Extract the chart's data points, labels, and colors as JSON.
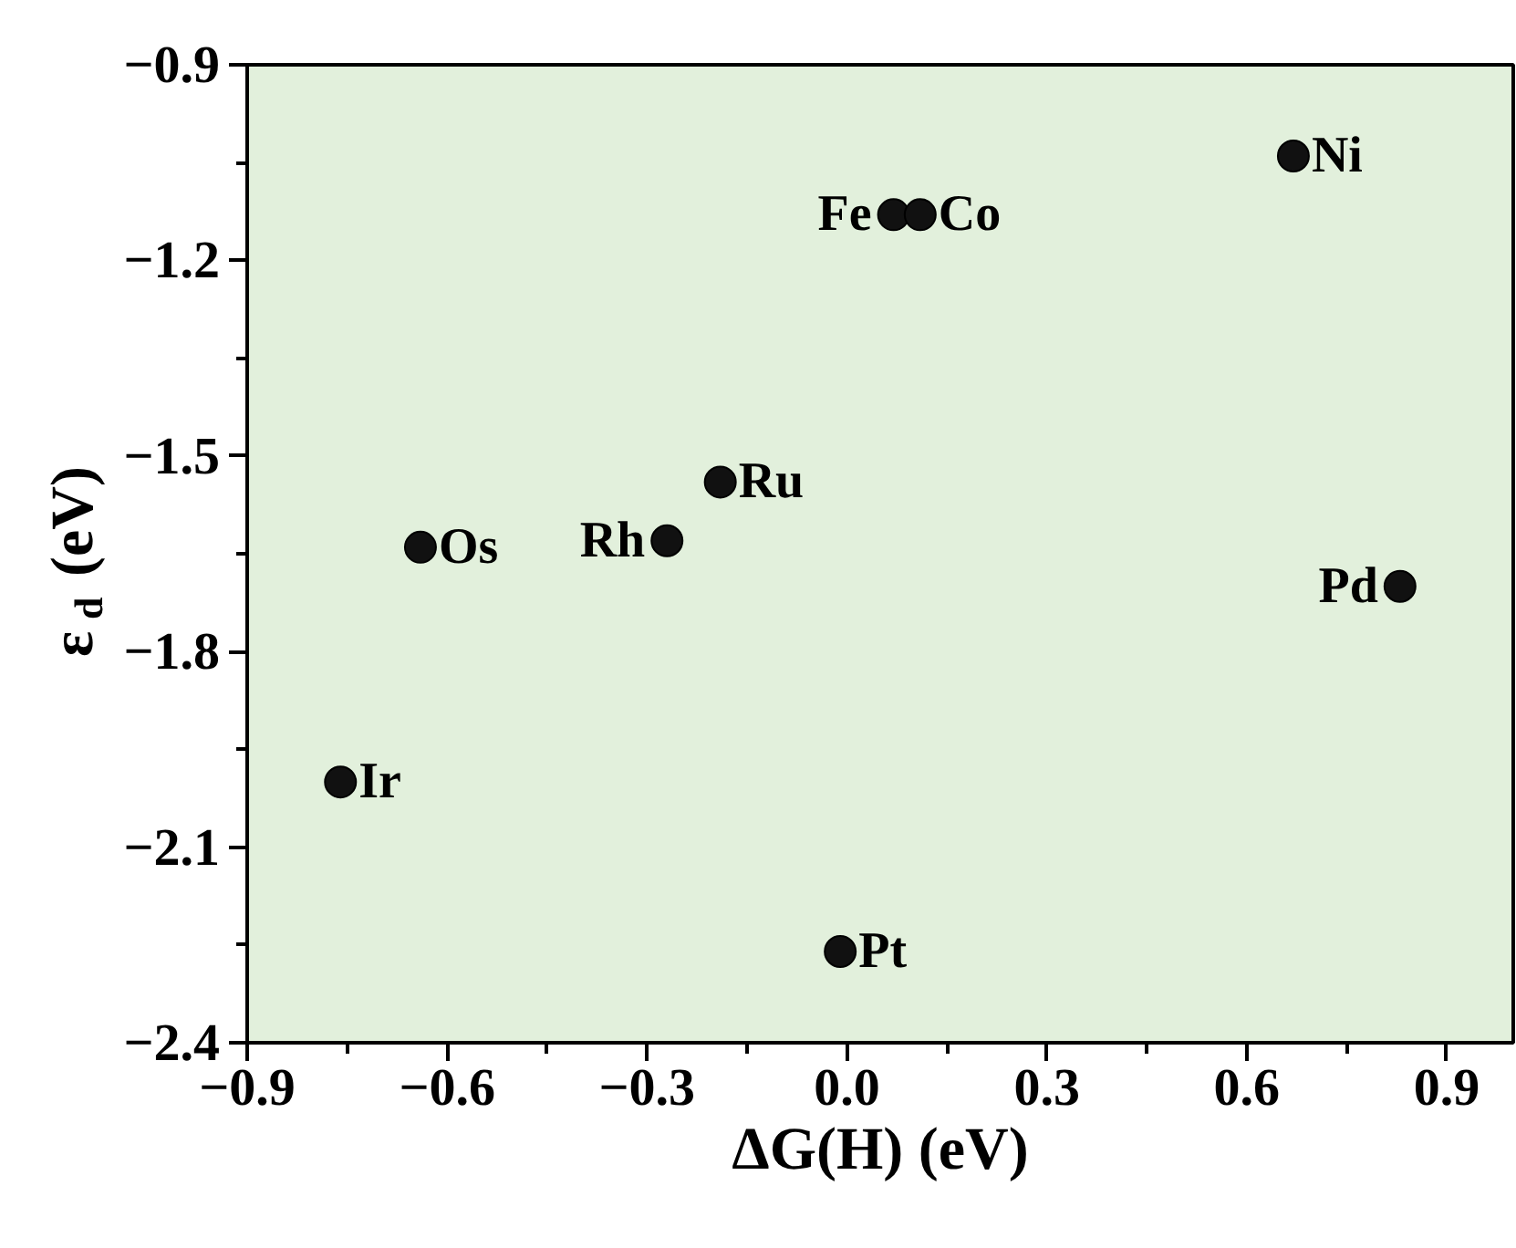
{
  "chart_data": {
    "type": "scatter",
    "xlabel": "ΔG(H) (eV)",
    "ylabel": "ε$_{d}$ (eV)",
    "xlim": [
      -0.9,
      1.0
    ],
    "ylim": [
      -2.4,
      -0.9
    ],
    "xticks": [
      {
        "value": -0.9,
        "label": "−0.9"
      },
      {
        "value": -0.6,
        "label": "−0.6"
      },
      {
        "value": -0.3,
        "label": "−0.3"
      },
      {
        "value": 0.0,
        "label": "0.0"
      },
      {
        "value": 0.3,
        "label": "0.3"
      },
      {
        "value": 0.6,
        "label": "0.6"
      },
      {
        "value": 0.9,
        "label": "0.9"
      }
    ],
    "yticks": [
      {
        "value": -0.9,
        "label": "−0.9"
      },
      {
        "value": -1.2,
        "label": "−1.2"
      },
      {
        "value": -1.5,
        "label": "−1.5"
      },
      {
        "value": -1.8,
        "label": "−1.8"
      },
      {
        "value": -2.1,
        "label": "−2.1"
      },
      {
        "value": -2.4,
        "label": "−2.4"
      }
    ],
    "x": [
      0.67,
      0.07,
      0.11,
      -0.19,
      -0.27,
      -0.64,
      0.83,
      -0.76,
      -0.01
    ],
    "series": [
      {
        "color": "#111111",
        "values": [
          -1.04,
          -1.13,
          -1.13,
          -1.54,
          -1.63,
          -1.64,
          -1.7,
          -2.0,
          -2.26
        ]
      }
    ],
    "marker": "circle",
    "grid": false,
    "annotations": [
      {
        "text": "Ni",
        "x": 0.67,
        "y": -1.04
      },
      {
        "text": "Fe",
        "x": 0.07,
        "y": -1.13
      },
      {
        "text": "Co",
        "x": 0.11,
        "y": -1.13
      },
      {
        "text": "Ru",
        "x": -0.19,
        "y": -1.54
      },
      {
        "text": "Rh",
        "x": -0.27,
        "y": -1.63
      },
      {
        "text": "Os",
        "x": -0.64,
        "y": -1.64
      },
      {
        "text": "Pd",
        "x": 0.83,
        "y": -1.7
      },
      {
        "text": "Ir",
        "x": -0.76,
        "y": -2.0
      },
      {
        "text": "Pt",
        "x": -0.01,
        "y": -2.26
      }
    ]
  }
}
